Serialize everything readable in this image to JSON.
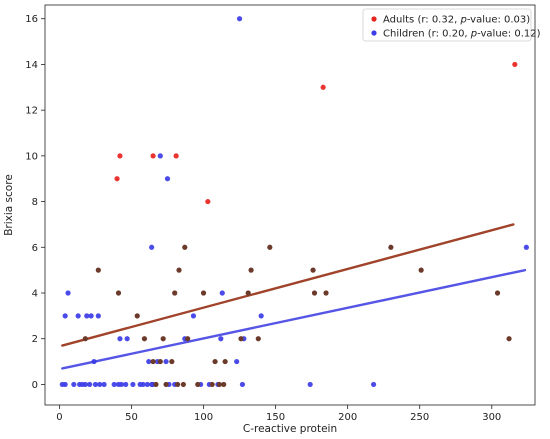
{
  "chart_data": {
    "type": "scatter",
    "xlabel": "C-reactive protein",
    "ylabel": "Brixia score",
    "xlim": [
      -10,
      330
    ],
    "ylim": [
      -0.9,
      16.6
    ],
    "xticks": [
      0,
      50,
      100,
      150,
      200,
      250,
      300
    ],
    "yticks": [
      0,
      2,
      4,
      6,
      8,
      10,
      12,
      14,
      16
    ],
    "grid": false,
    "legend_position": "top-right",
    "overlap_color": "#6b3a2a",
    "series": [
      {
        "name_parts": [
          "Adults (r: 0.32, ",
          "p",
          "-value: 0.03)"
        ],
        "color": "#e8231e",
        "trend_color": "#a0432a",
        "trend": [
          [
            2,
            1.7
          ],
          [
            315,
            7.0
          ]
        ],
        "points": [
          [
            40,
            9
          ],
          [
            42,
            10
          ],
          [
            65,
            10
          ],
          [
            81,
            10
          ],
          [
            103,
            8
          ],
          [
            183,
            13
          ],
          [
            316,
            14
          ]
        ]
      },
      {
        "name_parts": [
          "Children (r: 0.20, ",
          "p",
          "-value: 0.12)"
        ],
        "color": "#3c3ce8",
        "trend_color": "#5555e6",
        "trend": [
          [
            2,
            0.7
          ],
          [
            323,
            5.0
          ]
        ],
        "points": [
          [
            2,
            0
          ],
          [
            4,
            0
          ],
          [
            4,
            3
          ],
          [
            6,
            4
          ],
          [
            10,
            0
          ],
          [
            13,
            3
          ],
          [
            14,
            0
          ],
          [
            16,
            0
          ],
          [
            18,
            0
          ],
          [
            19,
            3
          ],
          [
            21,
            0
          ],
          [
            22,
            3
          ],
          [
            24,
            1
          ],
          [
            25,
            0
          ],
          [
            27,
            3
          ],
          [
            28,
            0
          ],
          [
            31,
            0
          ],
          [
            38,
            0
          ],
          [
            41,
            0
          ],
          [
            42,
            2
          ],
          [
            43,
            0
          ],
          [
            46,
            0
          ],
          [
            47,
            2
          ],
          [
            51,
            0
          ],
          [
            56,
            0
          ],
          [
            58,
            0
          ],
          [
            61,
            0
          ],
          [
            62,
            1
          ],
          [
            64,
            0
          ],
          [
            64,
            6
          ],
          [
            65,
            0
          ],
          [
            68,
            1
          ],
          [
            70,
            10
          ],
          [
            74,
            1
          ],
          [
            75,
            9
          ],
          [
            76,
            0
          ],
          [
            80,
            0
          ],
          [
            87,
            2
          ],
          [
            93,
            3
          ],
          [
            98,
            0
          ],
          [
            104,
            0
          ],
          [
            110,
            0
          ],
          [
            112,
            2
          ],
          [
            113,
            4
          ],
          [
            123,
            1
          ],
          [
            125,
            16
          ],
          [
            127,
            0
          ],
          [
            128,
            2
          ],
          [
            140,
            3
          ],
          [
            174,
            0
          ],
          [
            218,
            0
          ],
          [
            324,
            6
          ]
        ]
      }
    ],
    "overlap_points": [
      [
        18,
        2
      ],
      [
        27,
        5
      ],
      [
        41,
        4
      ],
      [
        54,
        3
      ],
      [
        59,
        2
      ],
      [
        65,
        1
      ],
      [
        67,
        0
      ],
      [
        70,
        1
      ],
      [
        72,
        2
      ],
      [
        74,
        0
      ],
      [
        78,
        1
      ],
      [
        80,
        4
      ],
      [
        82,
        0
      ],
      [
        83,
        5
      ],
      [
        86,
        0
      ],
      [
        87,
        6
      ],
      [
        89,
        2
      ],
      [
        96,
        0
      ],
      [
        100,
        4
      ],
      [
        106,
        0
      ],
      [
        108,
        1
      ],
      [
        111,
        0
      ],
      [
        114,
        0
      ],
      [
        115,
        1
      ],
      [
        126,
        2
      ],
      [
        131,
        4
      ],
      [
        133,
        5
      ],
      [
        138,
        2
      ],
      [
        146,
        6
      ],
      [
        176,
        5
      ],
      [
        177,
        4
      ],
      [
        185,
        4
      ],
      [
        230,
        6
      ],
      [
        251,
        5
      ],
      [
        304,
        4
      ],
      [
        312,
        2
      ]
    ]
  }
}
